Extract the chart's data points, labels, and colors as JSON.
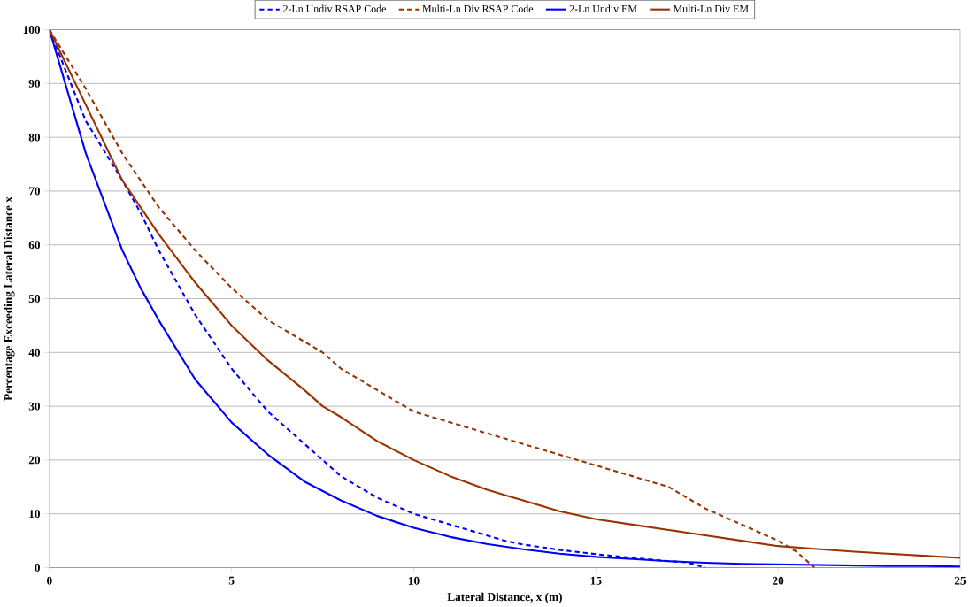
{
  "chart_data": {
    "type": "line",
    "xlabel": "Lateral Distance, x (m)",
    "ylabel": "Percentage Exceeding Lateral Distance x",
    "xlim": [
      0,
      25
    ],
    "ylim": [
      0,
      100
    ],
    "xticks": [
      0,
      5,
      10,
      15,
      20,
      25
    ],
    "yticks": [
      0,
      10,
      20,
      30,
      40,
      50,
      60,
      70,
      80,
      90,
      100
    ],
    "grid": "y",
    "legend": "top",
    "marker": "none",
    "series": [
      {
        "name": "2-Ln Undiv RSAP Code",
        "color": "#0000ff",
        "line_style": "dashed",
        "x": [
          0,
          1,
          2,
          2.5,
          3,
          4,
          5,
          6,
          7,
          7.5,
          8,
          9,
          10,
          11,
          12,
          12.5,
          13,
          14,
          15,
          16,
          17,
          17.5,
          18
        ],
        "values": [
          100,
          83,
          72,
          66,
          59,
          47,
          37,
          29,
          23,
          20,
          17,
          13,
          10,
          8,
          6,
          5,
          4.3,
          3.3,
          2.5,
          1.8,
          1.2,
          1,
          0
        ]
      },
      {
        "name": "Multi-Ln Div RSAP Code",
        "color": "#993300",
        "line_style": "dashed",
        "x": [
          0,
          1,
          2,
          2.5,
          3,
          4,
          5,
          6,
          7,
          7.5,
          8,
          9,
          10,
          11,
          12,
          12.5,
          13,
          14,
          15,
          16,
          17,
          17.5,
          18,
          19,
          20,
          20.5,
          21
        ],
        "values": [
          100,
          89,
          77,
          72,
          67,
          59,
          52,
          46,
          42,
          40,
          37,
          33,
          29,
          27,
          25,
          24,
          23,
          21,
          19,
          17,
          15,
          13,
          11,
          8,
          5,
          3,
          0
        ]
      },
      {
        "name": "2-Ln Undiv EM",
        "color": "#0000ff",
        "line_style": "solid",
        "x": [
          0,
          1,
          2,
          2.5,
          3,
          4,
          5,
          6,
          7,
          8,
          9,
          10,
          11,
          12,
          13,
          14,
          15,
          16,
          17,
          18,
          19,
          20,
          21,
          22,
          23,
          24,
          25
        ],
        "values": [
          100,
          77,
          59,
          52,
          46,
          35,
          27,
          21,
          16,
          12.5,
          9.6,
          7.4,
          5.7,
          4.4,
          3.4,
          2.6,
          2,
          1.6,
          1.2,
          0.9,
          0.7,
          0.6,
          0.5,
          0.4,
          0.3,
          0.3,
          0.2
        ]
      },
      {
        "name": "Multi-Ln Div EM",
        "color": "#993300",
        "line_style": "solid",
        "x": [
          0,
          1,
          2,
          2.5,
          3,
          4,
          5,
          6,
          7,
          7.5,
          8,
          9,
          10,
          11,
          12,
          12.5,
          13,
          14,
          15,
          16,
          17,
          17.5,
          18,
          19,
          20,
          21,
          22,
          22.5,
          23,
          24,
          25
        ],
        "values": [
          100,
          86,
          72,
          67,
          62,
          53,
          45,
          38.5,
          33,
          30,
          28,
          23.5,
          20,
          17,
          14.5,
          13.5,
          12.5,
          10.5,
          9,
          8,
          7,
          6.5,
          6,
          5,
          4,
          3.5,
          3,
          2.8,
          2.6,
          2.2,
          1.8
        ]
      }
    ]
  }
}
